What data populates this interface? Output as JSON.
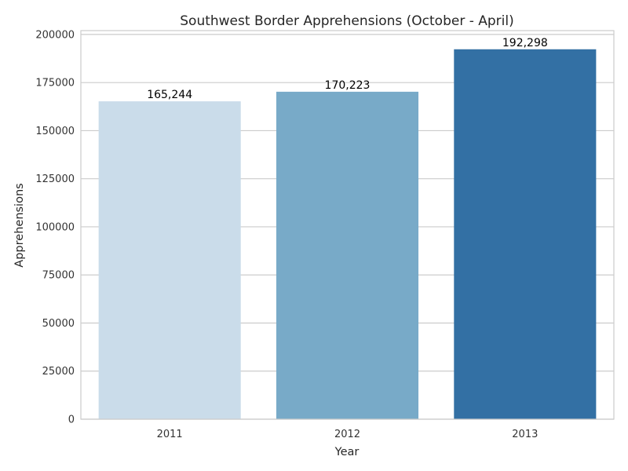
{
  "chart_data": {
    "type": "bar",
    "title": "Southwest Border Apprehensions (October - April)",
    "xlabel": "Year",
    "ylabel": "Apprehensions",
    "categories": [
      "2011",
      "2012",
      "2013"
    ],
    "values": [
      165244,
      170223,
      192298
    ],
    "data_labels": [
      "165,244",
      "170,223",
      "192,298"
    ],
    "bar_colors": [
      "#cadcea",
      "#78aac8",
      "#3370a4"
    ],
    "ylim": [
      0,
      202000
    ],
    "yticks": [
      0,
      25000,
      50000,
      75000,
      100000,
      125000,
      150000,
      175000,
      200000
    ],
    "ytick_labels": [
      "0",
      "25000",
      "50000",
      "75000",
      "100000",
      "125000",
      "150000",
      "175000",
      "200000"
    ],
    "grid": "horizontal",
    "legend": "none"
  },
  "colors": {
    "grid": "#cccccc",
    "frame": "#cccccc",
    "text": "#262626"
  }
}
